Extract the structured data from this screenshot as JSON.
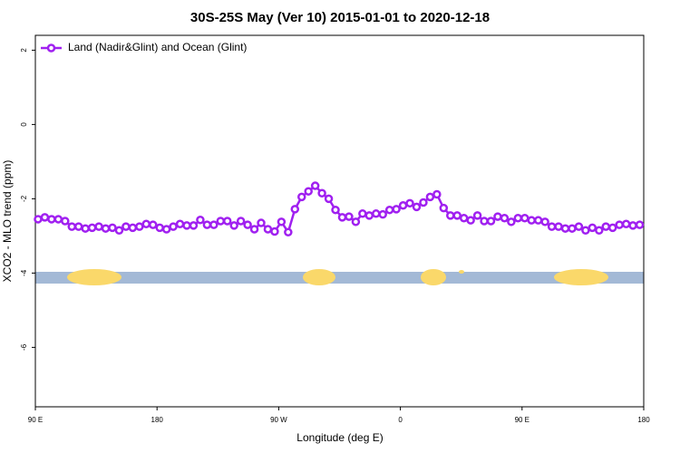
{
  "chart_data": {
    "type": "line",
    "title": "30S-25S May (Ver 10)   2015-01-01 to 2020-12-18",
    "x_label": "Longitude (deg E)",
    "y_label": "XCO2 - MLO trend (ppm)",
    "xlim": [
      90,
      540
    ],
    "ylim": [
      -7.6,
      2.4
    ],
    "xticks": [
      {
        "value": 90,
        "label": "90 E"
      },
      180,
      {
        "value": 270,
        "label": "90 W"
      },
      {
        "value": 360,
        "label": "0"
      },
      {
        "value": 450,
        "label": "90 E"
      },
      {
        "value": 540,
        "label": "180"
      }
    ],
    "yticks": [
      2,
      0,
      -2,
      -4,
      -6
    ],
    "legend": "top-left",
    "x": [
      92,
      97,
      102,
      107,
      112,
      117,
      122,
      127,
      132,
      137,
      142,
      147,
      152,
      157,
      162,
      167,
      172,
      177,
      182,
      187,
      192,
      197,
      202,
      207,
      212,
      217,
      222,
      227,
      232,
      237,
      242,
      247,
      252,
      257,
      262,
      267,
      272,
      277,
      282,
      287,
      292,
      297,
      302,
      307,
      312,
      317,
      322,
      327,
      332,
      337,
      342,
      347,
      352,
      357,
      362,
      367,
      372,
      377,
      382,
      387,
      392,
      397,
      402,
      407,
      412,
      417,
      422,
      427,
      432,
      437,
      442,
      447,
      452,
      457,
      462,
      467,
      472,
      477,
      482,
      487,
      492,
      497,
      502,
      507,
      512,
      517,
      522,
      527,
      532,
      537
    ],
    "series": [
      {
        "name": "Land (Nadir&Glint) and Ocean (Glint)",
        "color": "#a020f0",
        "values": [
          -2.55,
          -2.5,
          -2.55,
          -2.55,
          -2.6,
          -2.75,
          -2.75,
          -2.8,
          -2.78,
          -2.75,
          -2.8,
          -2.78,
          -2.85,
          -2.75,
          -2.78,
          -2.75,
          -2.68,
          -2.7,
          -2.78,
          -2.82,
          -2.75,
          -2.68,
          -2.72,
          -2.72,
          -2.57,
          -2.7,
          -2.7,
          -2.6,
          -2.6,
          -2.72,
          -2.6,
          -2.7,
          -2.82,
          -2.65,
          -2.82,
          -2.88,
          -2.62,
          -2.9,
          -2.28,
          -1.95,
          -1.8,
          -1.65,
          -1.85,
          -2.0,
          -2.3,
          -2.5,
          -2.48,
          -2.62,
          -2.4,
          -2.45,
          -2.4,
          -2.42,
          -2.3,
          -2.28,
          -2.18,
          -2.12,
          -2.22,
          -2.1,
          -1.95,
          -1.88,
          -2.25,
          -2.45,
          -2.45,
          -2.52,
          -2.58,
          -2.45,
          -2.6,
          -2.6,
          -2.48,
          -2.52,
          -2.62,
          -2.52,
          -2.52,
          -2.58,
          -2.58,
          -2.62,
          -2.75,
          -2.75,
          -2.8,
          -2.8,
          -2.75,
          -2.85,
          -2.78,
          -2.85,
          -2.75,
          -2.78,
          -2.7,
          -2.68,
          -2.72,
          -2.7
        ]
      }
    ]
  }
}
